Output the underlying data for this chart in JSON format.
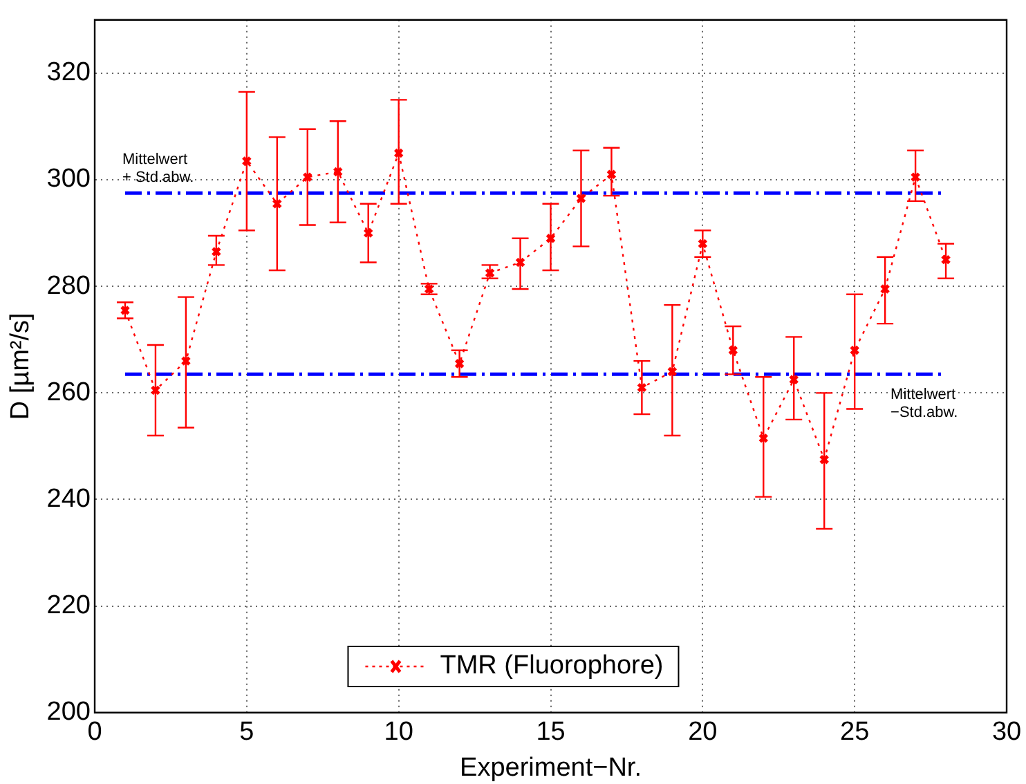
{
  "chart_data": {
    "type": "line",
    "xlabel": "Experiment−Nr.",
    "ylabel": "D [µm²/s]",
    "x": [
      1,
      2,
      3,
      4,
      5,
      6,
      7,
      8,
      9,
      10,
      11,
      12,
      13,
      14,
      15,
      16,
      17,
      18,
      19,
      20,
      21,
      22,
      23,
      24,
      25,
      26,
      27,
      28
    ],
    "series": [
      {
        "name": "TMR (Fluorophore)",
        "color": "#ff0000",
        "marker": "cross",
        "line_style": "dotted",
        "values": [
          275.5,
          260.5,
          266,
          286.5,
          303.5,
          295.5,
          300.5,
          301.5,
          290,
          305,
          279.5,
          265.5,
          282.5,
          284.5,
          289,
          296.5,
          301,
          261,
          264,
          288,
          268,
          251.5,
          262.5,
          247.5,
          268,
          279.5,
          300.5,
          285
        ],
        "errors": [
          [
            274,
            277
          ],
          [
            252,
            269
          ],
          [
            253.5,
            278
          ],
          [
            284,
            289.5
          ],
          [
            290.5,
            316.5
          ],
          [
            283,
            308
          ],
          [
            291.5,
            309.5
          ],
          [
            292,
            311
          ],
          [
            284.5,
            295.5
          ],
          [
            295.5,
            315
          ],
          [
            278.5,
            280.5
          ],
          [
            263,
            268
          ],
          [
            281.5,
            284
          ],
          [
            279.5,
            289
          ],
          [
            283,
            295.5
          ],
          [
            287.5,
            305.5
          ],
          [
            297,
            306
          ],
          [
            256,
            266
          ],
          [
            252,
            276.5
          ],
          [
            285.5,
            290.5
          ],
          [
            263.5,
            272.5
          ],
          [
            240.5,
            263
          ],
          [
            255,
            270.5
          ],
          [
            234.5,
            260
          ],
          [
            257,
            278.5
          ],
          [
            273,
            285.5
          ],
          [
            296,
            305.5
          ],
          [
            281.5,
            288
          ]
        ]
      }
    ],
    "ref_lines": [
      {
        "axis": "y",
        "value": 297.5,
        "label": "Mittelwert\n+ Std.abw.",
        "color": "#0000ff",
        "line_style": "dashdot"
      },
      {
        "axis": "y",
        "value": 263.5,
        "label": "Mittelwert\n−Std.abw.",
        "color": "#0000ff",
        "line_style": "dashdot"
      }
    ],
    "xlim": [
      0,
      30
    ],
    "xticks": [
      0,
      5,
      10,
      15,
      20,
      25,
      30
    ],
    "ylim": [
      200,
      330
    ],
    "yticks": [
      200,
      220,
      240,
      260,
      280,
      300,
      320
    ],
    "grid": true,
    "legend": "bottom"
  }
}
